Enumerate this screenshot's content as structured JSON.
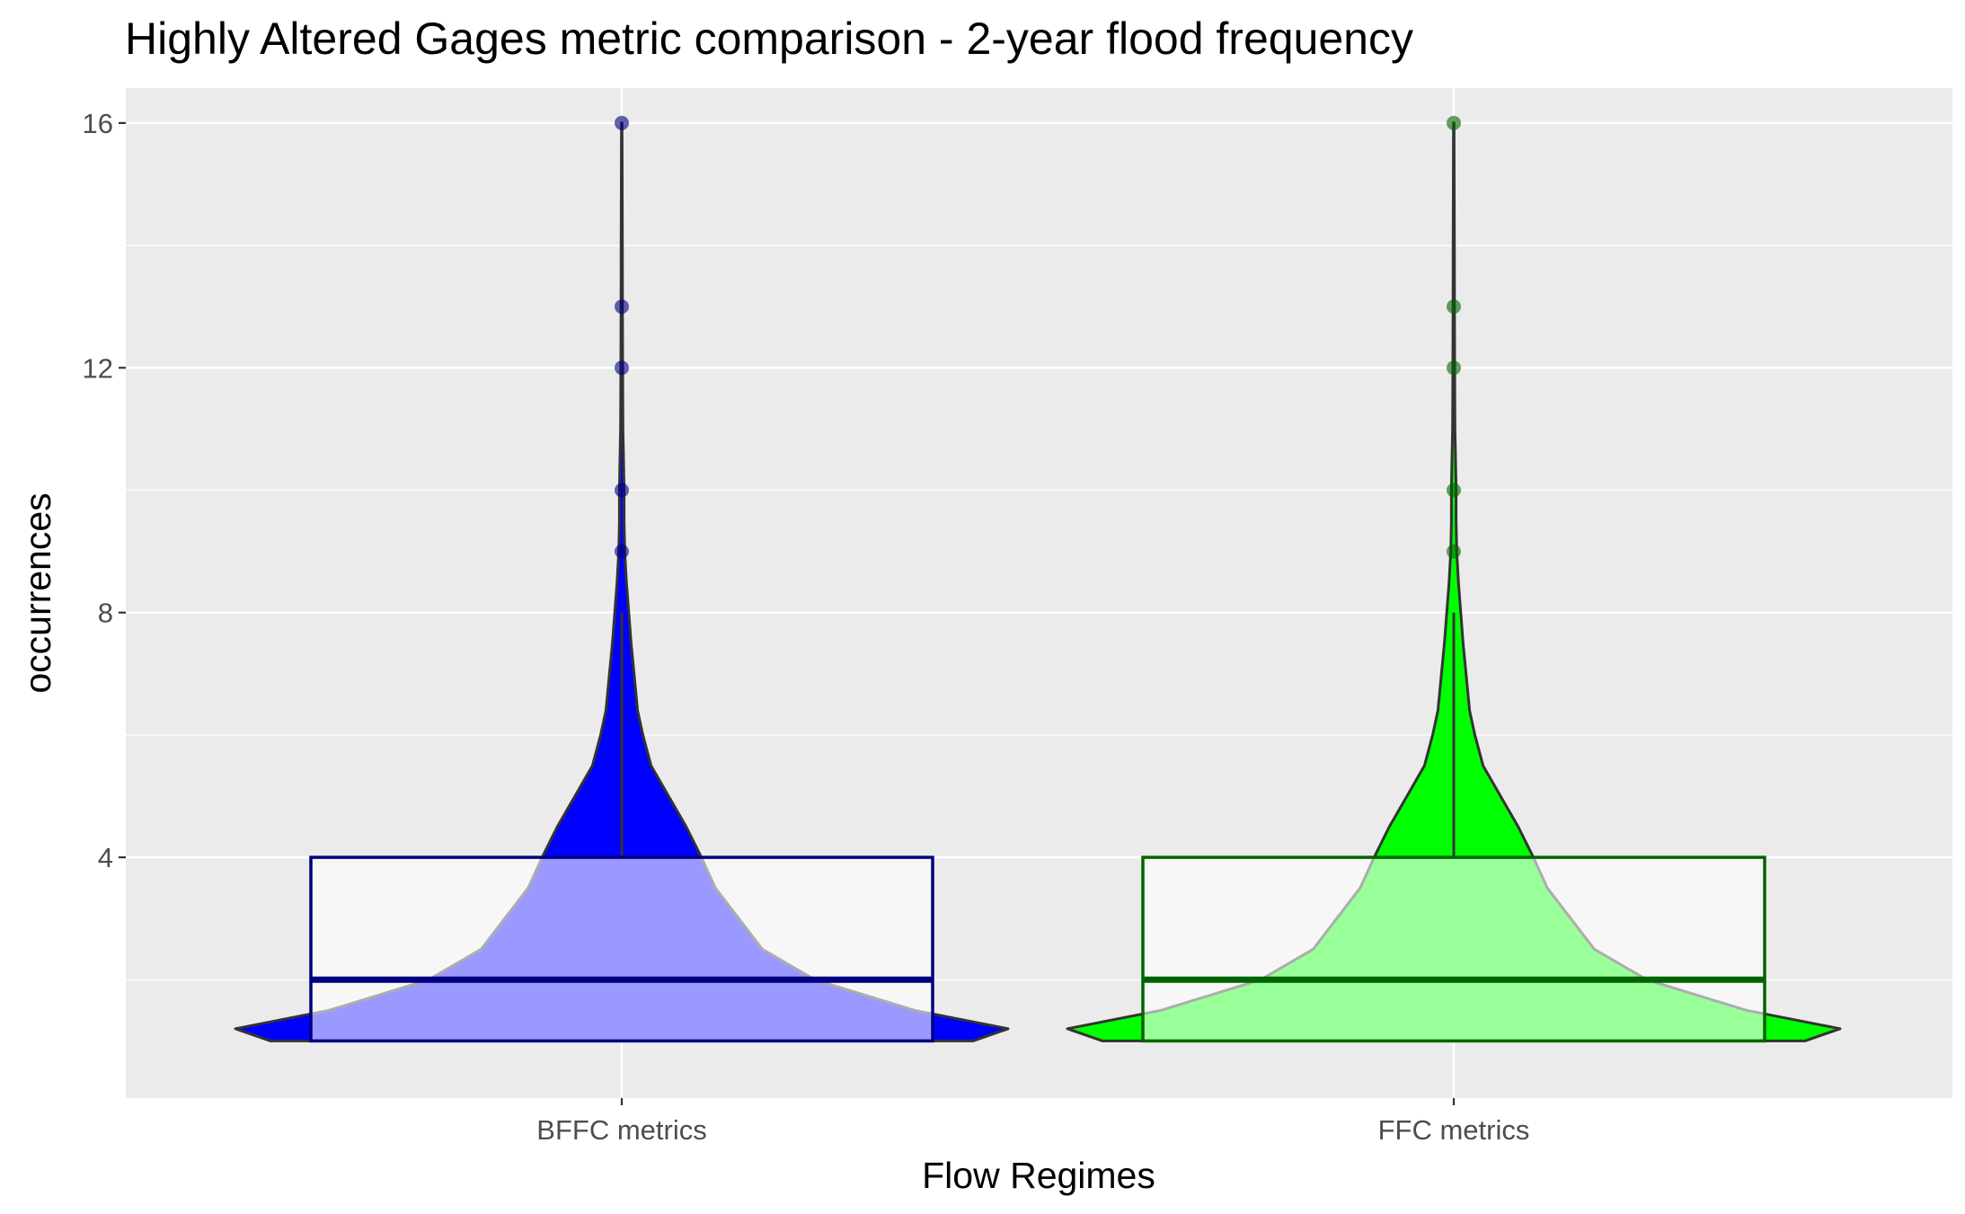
{
  "chart_data": {
    "type": "violin",
    "title": "Highly Altered Gages metric comparison - 2-year flood frequency",
    "xlabel": "Flow Regimes",
    "ylabel": "occurrences",
    "categories": [
      "BFFC metrics",
      "FFC metrics"
    ],
    "ylim": [
      0,
      16.6
    ],
    "yticks": [
      4,
      8,
      12,
      16
    ],
    "grid": true,
    "series": [
      {
        "category": "BFFC metrics",
        "fill": "#0000ff",
        "box_color": "#000080",
        "box": {
          "min": 1,
          "q1": 1,
          "median": 2,
          "q3": 4,
          "max": 8
        },
        "outliers": [
          9,
          10,
          12,
          13,
          16
        ],
        "density": [
          [
            1.0,
            0.6
          ],
          [
            1.2,
            0.66
          ],
          [
            1.5,
            0.5
          ],
          [
            2.0,
            0.33
          ],
          [
            2.5,
            0.24
          ],
          [
            3.0,
            0.2
          ],
          [
            3.5,
            0.16
          ],
          [
            4.0,
            0.136
          ],
          [
            4.5,
            0.11
          ],
          [
            5.0,
            0.08
          ],
          [
            5.5,
            0.05
          ],
          [
            6.0,
            0.036
          ],
          [
            6.4,
            0.027
          ],
          [
            7.0,
            0.021
          ],
          [
            7.5,
            0.016
          ],
          [
            8.0,
            0.012
          ],
          [
            8.5,
            0.008
          ],
          [
            9.0,
            0.005
          ],
          [
            9.5,
            0.004
          ],
          [
            10.0,
            0.004
          ],
          [
            10.5,
            0.003
          ],
          [
            11.0,
            0.002
          ],
          [
            12.0,
            0.0015
          ],
          [
            13.0,
            0.0012
          ],
          [
            14.0,
            0.001
          ],
          [
            15.0,
            0.0008
          ],
          [
            16.0,
            0.0005
          ]
        ]
      },
      {
        "category": "FFC metrics",
        "fill": "#00ff00",
        "box_color": "#006400",
        "box": {
          "min": 1,
          "q1": 1,
          "median": 2,
          "q3": 4,
          "max": 8
        },
        "outliers": [
          9,
          10,
          12,
          13,
          16
        ],
        "density": [
          [
            1.0,
            0.6
          ],
          [
            1.2,
            0.66
          ],
          [
            1.5,
            0.5
          ],
          [
            2.0,
            0.33
          ],
          [
            2.5,
            0.24
          ],
          [
            3.0,
            0.2
          ],
          [
            3.5,
            0.16
          ],
          [
            4.0,
            0.136
          ],
          [
            4.5,
            0.11
          ],
          [
            5.0,
            0.08
          ],
          [
            5.5,
            0.05
          ],
          [
            6.0,
            0.036
          ],
          [
            6.4,
            0.027
          ],
          [
            7.0,
            0.021
          ],
          [
            7.5,
            0.016
          ],
          [
            8.0,
            0.012
          ],
          [
            8.5,
            0.008
          ],
          [
            9.0,
            0.005
          ],
          [
            9.5,
            0.004
          ],
          [
            10.0,
            0.004
          ],
          [
            10.5,
            0.003
          ],
          [
            11.0,
            0.002
          ],
          [
            12.0,
            0.0015
          ],
          [
            13.0,
            0.0012
          ],
          [
            14.0,
            0.001
          ],
          [
            15.0,
            0.0008
          ],
          [
            16.0,
            0.0005
          ]
        ]
      }
    ]
  }
}
